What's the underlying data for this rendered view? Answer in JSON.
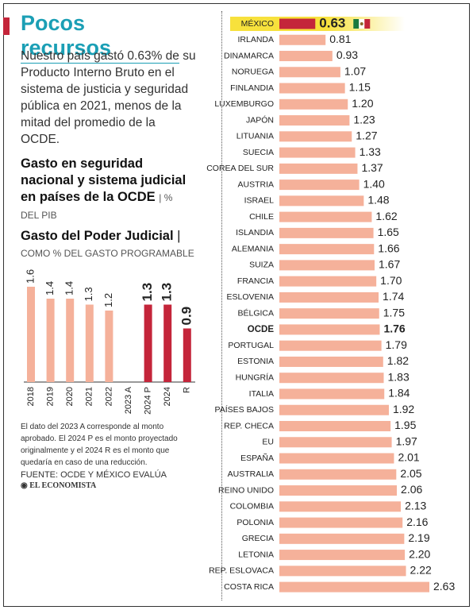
{
  "header": {
    "title": "Pocos recursos",
    "intro": "Nuestro país gastó 0.63% de su Producto Interno Bruto en el sistema de justicia y seguridad pública en 2021, menos de la mitad del promedio de la OCDE."
  },
  "chart_data": [
    {
      "type": "hbar",
      "title": "Gasto en seguridad nacional y sistema judicial en países de la OCDE",
      "unit": "% DEL PIB",
      "categories": [
        "MÉXICO",
        "IRLANDA",
        "DINAMARCA",
        "NORUEGA",
        "FINLANDIA",
        "LUXEMBURGO",
        "JAPÓN",
        "LITUANIA",
        "SUECIA",
        "COREA DEL SUR",
        "AUSTRIA",
        "ISRAEL",
        "CHILE",
        "ISLANDIA",
        "ALEMANIA",
        "SUIZA",
        "FRANCIA",
        "ESLOVENIA",
        "BÉLGICA",
        "OCDE",
        "PORTUGAL",
        "ESTONIA",
        "HUNGRÍA",
        "ITALIA",
        "PAÍSES BAJOS",
        "REP. CHECA",
        "EU",
        "ESPAÑA",
        "AUSTRALIA",
        "REINO UNIDO",
        "COLOMBIA",
        "POLONIA",
        "GRECIA",
        "LETONIA",
        "REP. ESLOVACA",
        "COSTA RICA"
      ],
      "values": [
        0.63,
        0.81,
        0.93,
        1.07,
        1.15,
        1.2,
        1.23,
        1.27,
        1.33,
        1.37,
        1.4,
        1.48,
        1.62,
        1.65,
        1.66,
        1.67,
        1.7,
        1.74,
        1.75,
        1.76,
        1.79,
        1.82,
        1.83,
        1.84,
        1.92,
        1.95,
        1.97,
        2.01,
        2.05,
        2.06,
        2.13,
        2.16,
        2.19,
        2.2,
        2.22,
        2.63
      ],
      "value_labels": [
        "0.63",
        "0.81",
        "0.93",
        "1.07",
        "1.15",
        "1.20",
        "1.23",
        "1.27",
        "1.33",
        "1.37",
        "1.40",
        "1.48",
        "1.62",
        "1.65",
        "1.66",
        "1.67",
        "1.70",
        "1.74",
        "1.75",
        "1.76",
        "1.79",
        "1.82",
        "1.83",
        "1.84",
        "1.92",
        "1.95",
        "1.97",
        "2.01",
        "2.05",
        "2.06",
        "2.13",
        "2.16",
        "2.19",
        "2.20",
        "2.22",
        "2.63"
      ],
      "color": "#f5b19a",
      "highlight": 0,
      "highlight_color": "#c4253a",
      "bold": 19
    },
    {
      "type": "bar",
      "title": "Gasto del Poder Judicial",
      "unit": "COMO % DEL GASTO PROGRAMABLE",
      "categories": [
        "2018",
        "2019",
        "2020",
        "2021",
        "2022",
        "2023 A",
        "2024 P",
        "2024",
        "R"
      ],
      "values": [
        1.6,
        1.4,
        1.4,
        1.3,
        1.2,
        null,
        1.3,
        1.3,
        0.9
      ],
      "colors": [
        "#f5b19a",
        "#f5b19a",
        "#f5b19a",
        "#f5b19a",
        "#f5b19a",
        "#f5b19a",
        "#c4253a",
        "#c4253a",
        "#c4253a"
      ]
    }
  ],
  "note": "El dato del 2023 A corresponde al monto aprobado. El 2024 P es el monto proyectado originalmente y el 2024 R es el monto que quedaría en caso de una reducción.",
  "source": "FUENTE: OCDE Y MÉXICO EVALÚA",
  "logo": "EL ECONOMISTA"
}
